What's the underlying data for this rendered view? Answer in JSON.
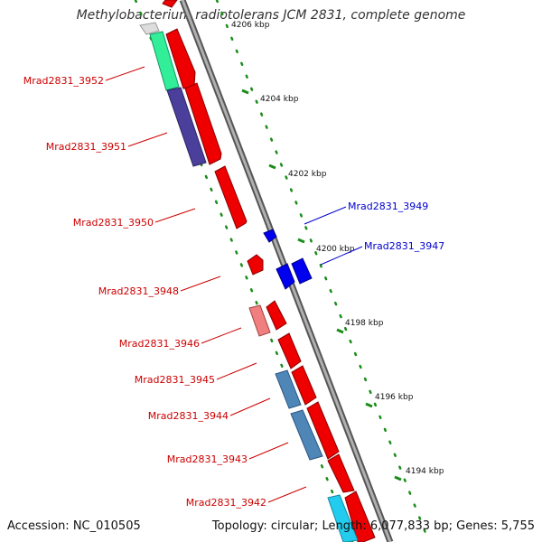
{
  "title": "Methylobacterium radiotolerans JCM 2831, complete genome",
  "footer": {
    "accession": "Accession: NC_010505",
    "topology": "Topology: circular; Length: 6,077,833 bp; Genes: 5,755"
  },
  "colors": {
    "forward_strand": "#ff0000",
    "reverse_strand": "#0000ff",
    "label_forward": "#cc0000",
    "label_reverse": "#0000cc",
    "tick": "#1a8c1a",
    "backbone": "#888888"
  },
  "scale_ticks": [
    {
      "label": "4206 kbp",
      "position_kbp": 4206
    },
    {
      "label": "4204 kbp",
      "position_kbp": 4204
    },
    {
      "label": "4202 kbp",
      "position_kbp": 4202
    },
    {
      "label": "4200 kbp",
      "position_kbp": 4200
    },
    {
      "label": "4198 kbp",
      "position_kbp": 4198
    },
    {
      "label": "4196 kbp",
      "position_kbp": 4196
    },
    {
      "label": "4194 kbp",
      "position_kbp": 4194
    }
  ],
  "genes": [
    {
      "label": "Mrad2831_3952",
      "strand": "reverse"
    },
    {
      "label": "Mrad2831_3951",
      "strand": "reverse"
    },
    {
      "label": "Mrad2831_3950",
      "strand": "reverse"
    },
    {
      "label": "Mrad2831_3949",
      "strand": "forward"
    },
    {
      "label": "Mrad2831_3948",
      "strand": "reverse"
    },
    {
      "label": "Mrad2831_3947",
      "strand": "forward"
    },
    {
      "label": "Mrad2831_3946",
      "strand": "reverse"
    },
    {
      "label": "Mrad2831_3945",
      "strand": "reverse"
    },
    {
      "label": "Mrad2831_3944",
      "strand": "reverse"
    },
    {
      "label": "Mrad2831_3943",
      "strand": "reverse"
    },
    {
      "label": "Mrad2831_3942",
      "strand": "reverse"
    }
  ]
}
